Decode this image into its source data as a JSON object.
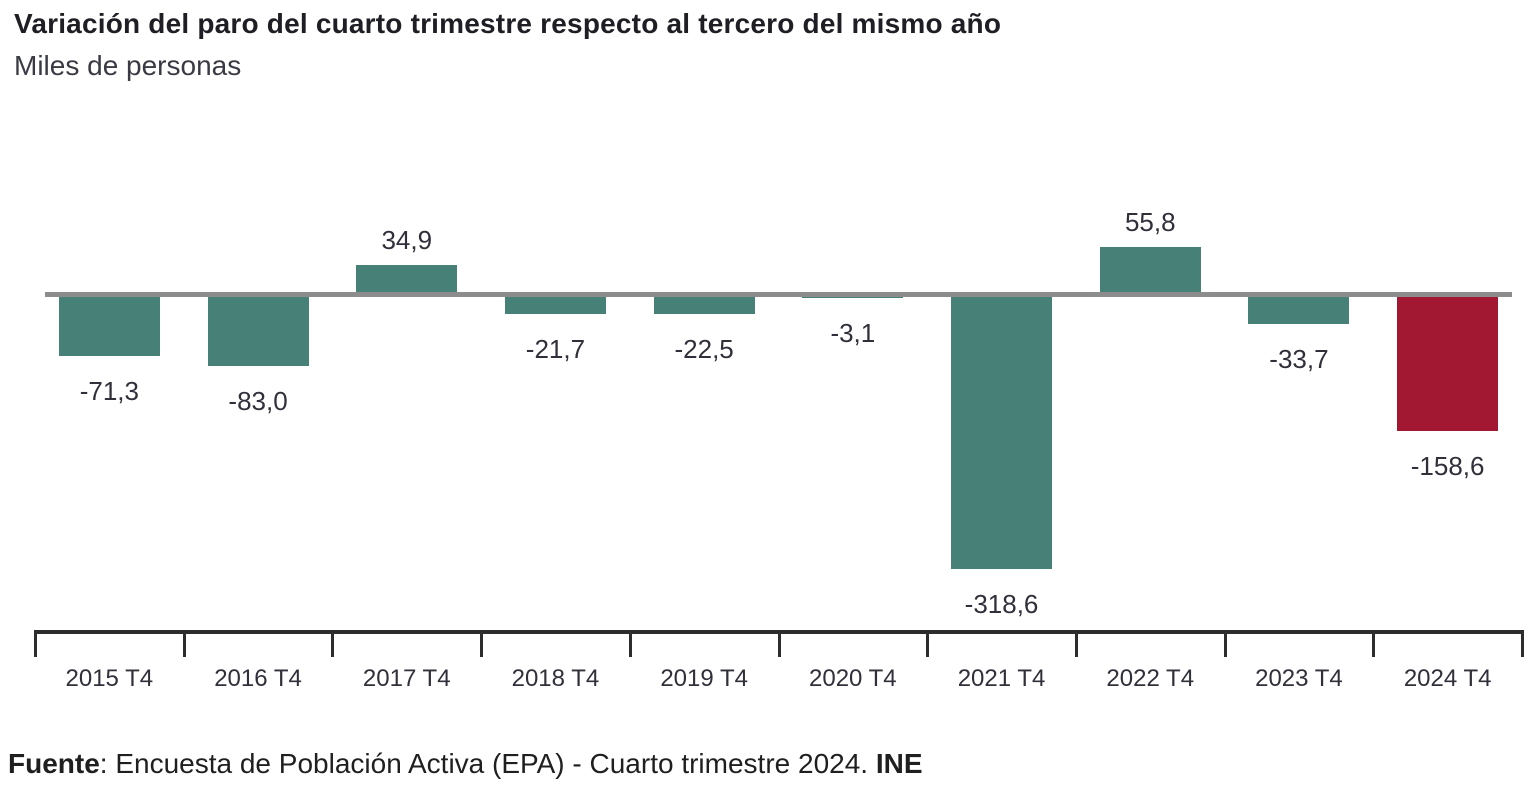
{
  "page": {
    "title": "Variación del paro del cuarto trimestre respecto al tercero del mismo año",
    "subtitle": "Miles de personas"
  },
  "chart_data": {
    "type": "bar",
    "title": "Variación del paro del cuarto trimestre respecto al tercero del mismo año",
    "subtitle": "Miles de personas",
    "xlabel": "",
    "ylabel": "Miles de personas",
    "categories": [
      "2015 T4",
      "2016 T4",
      "2017 T4",
      "2018 T4",
      "2019 T4",
      "2020 T4",
      "2021 T4",
      "2022 T4",
      "2023 T4",
      "2024 T4"
    ],
    "values": [
      -71.3,
      -83.0,
      34.9,
      -21.7,
      -22.5,
      -3.1,
      -318.6,
      55.8,
      -33.7,
      -158.6
    ],
    "value_labels": [
      "-71,3",
      "-83,0",
      "34,9",
      "-21,7",
      "-22,5",
      "-3,1",
      "-318,6",
      "55,8",
      "-33,7",
      "-158,6"
    ],
    "baseline": 0,
    "ylim": [
      -340,
      80
    ],
    "grid": false,
    "legend": false,
    "highlight_index": 9,
    "colors": {
      "bar_default": "#478076",
      "bar_highlight": "#A21833",
      "baseline": "#8C8C8C",
      "axis": "#2D2D2D",
      "label_text": "#30303a"
    }
  },
  "footer": {
    "source_label": "Fuente",
    "source_text": ": Encuesta de Población Activa (EPA) - Cuarto trimestre 2024. ",
    "source_org": "INE"
  }
}
